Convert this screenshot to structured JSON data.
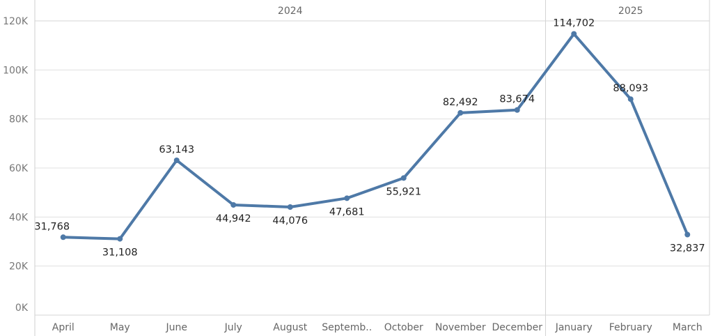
{
  "chart_data": {
    "type": "line",
    "title": "",
    "xlabel": "",
    "ylabel": "",
    "ylim": [
      0,
      120000
    ],
    "y_ticks": [
      0,
      20000,
      40000,
      60000,
      80000,
      100000,
      120000
    ],
    "y_tick_labels": [
      "0K",
      "20K",
      "40K",
      "60K",
      "80K",
      "100K",
      "120K"
    ],
    "grid": true,
    "groups": [
      {
        "label": "2024",
        "categories": [
          "April",
          "May",
          "June",
          "July",
          "August",
          "Septemb..",
          "October",
          "November",
          "December"
        ]
      },
      {
        "label": "2025",
        "categories": [
          "January",
          "February",
          "March"
        ]
      }
    ],
    "categories": [
      "April",
      "May",
      "June",
      "July",
      "August",
      "Septemb..",
      "October",
      "November",
      "December",
      "January",
      "February",
      "March"
    ],
    "series": [
      {
        "values": [
          31768,
          31108,
          63143,
          44942,
          44076,
          47681,
          55921,
          82492,
          83674,
          114702,
          88093,
          32837
        ],
        "labels": [
          "31,768",
          "31,108",
          "63,143",
          "44,942",
          "44,076",
          "47,681",
          "55,921",
          "82,492",
          "83,674",
          "114,702",
          "88,093",
          "32,837"
        ],
        "label_positions": [
          "above",
          "below",
          "above",
          "below",
          "below",
          "below",
          "below",
          "above",
          "above",
          "above",
          "above",
          "below"
        ],
        "color": "#4e79a7"
      }
    ]
  }
}
